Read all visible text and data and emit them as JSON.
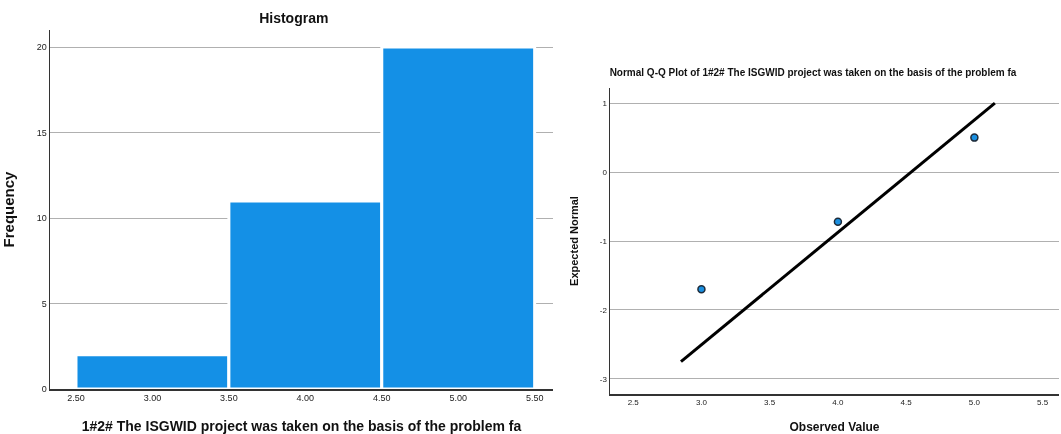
{
  "chart_data": [
    {
      "type": "histogram",
      "title": "Histogram",
      "xlabel": "1#2# The ISGWID project was taken on the basis of the problem fa",
      "ylabel": "Frequency",
      "bins": [
        2.5,
        3.5,
        4.5,
        5.5
      ],
      "values": [
        2,
        11,
        20
      ],
      "color": "#1490e6",
      "xlim": [
        2.33,
        5.62
      ],
      "ylim": [
        0,
        21
      ],
      "xticks": [
        {
          "value": 2.5,
          "label": "2.50"
        },
        {
          "value": 3,
          "label": "3.00"
        },
        {
          "value": 3.5,
          "label": "3.50"
        },
        {
          "value": 4,
          "label": "4.00"
        },
        {
          "value": 4.5,
          "label": "4.50"
        },
        {
          "value": 5,
          "label": "5.00"
        },
        {
          "value": 5.5,
          "label": "5.50"
        }
      ],
      "yticks": [
        0,
        5,
        10,
        15,
        20
      ],
      "grid": "y"
    },
    {
      "type": "scatter",
      "title": "Normal Q-Q Plot of 1#2# The ISGWID project was taken on the basis of the problem fa",
      "xlabel": "Observed Value",
      "ylabel": "Expected Normal",
      "xlim": [
        2.33,
        5.62
      ],
      "ylim": [
        -3.22,
        1.22
      ],
      "xticks": [
        2.5,
        {
          "value": 3,
          "label": "3.0"
        },
        3.5,
        {
          "value": 4,
          "label": "4.0"
        },
        4.5,
        {
          "value": 5,
          "label": "5.0"
        },
        5.5
      ],
      "yticks": [
        -3,
        -2,
        -1,
        0,
        1
      ],
      "grid": "y",
      "series": [
        {
          "marker": "circle",
          "color": "#1a8fe0",
          "x": [
            3,
            4,
            5
          ],
          "values": [
            -1.7,
            -0.72,
            0.5
          ]
        },
        {
          "type": "line",
          "line_style": "solid",
          "color": "#000000",
          "x": [
            2.85,
            5.15
          ],
          "values": [
            -2.75,
            1.0
          ]
        }
      ]
    }
  ]
}
